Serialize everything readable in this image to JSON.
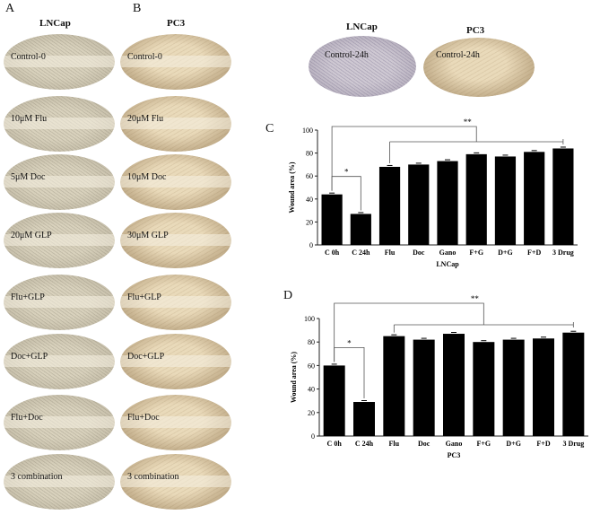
{
  "panels": {
    "a": "A",
    "b": "B",
    "c": "C",
    "d": "D"
  },
  "columns": {
    "lncap": "LNCap",
    "pc3": "PC3"
  },
  "lncap_labels": [
    "Control-0",
    "10μM Flu",
    "5μM Doc",
    "20μM GLP",
    "Flu+GLP",
    "Doc+GLP",
    "Flu+Doc",
    "3 combination"
  ],
  "pc3_labels": [
    "Control-0",
    "20μM Flu",
    "10μM Doc",
    "30μM GLP",
    "Flu+GLP",
    "Doc+GLP",
    "Flu+Doc",
    "3 combination"
  ],
  "top_right": {
    "lncap_title": "LNCap",
    "pc3_title": "PC3",
    "lncap_label": "Control-24h",
    "pc3_label": "Control-24h"
  },
  "chart_data": [
    {
      "type": "bar",
      "panel": "C",
      "categories": [
        "C 0h",
        "C 24h",
        "Flu",
        "Doc",
        "Gano",
        "F+G",
        "D+G",
        "F+D",
        "3 Drug"
      ],
      "values": [
        44,
        27,
        68,
        70,
        73,
        79,
        77,
        81,
        84
      ],
      "xlabel": "LNCap",
      "ylabel": "Wound area (%)",
      "ylim": [
        0,
        100
      ],
      "yticks": [
        "0",
        "20",
        "40",
        "60",
        "80",
        "100"
      ],
      "sig_small": "*",
      "sig_large": "**"
    },
    {
      "type": "bar",
      "panel": "D",
      "categories": [
        "C 0h",
        "C 24h",
        "Flu",
        "Doc",
        "Gano",
        "F+G",
        "D+G",
        "F+D",
        "3 Drug"
      ],
      "values": [
        60,
        29,
        85,
        82,
        87,
        80,
        82,
        83,
        88
      ],
      "xlabel": "PC3",
      "ylabel": "Wound area (%)",
      "ylim": [
        0,
        100
      ],
      "yticks": [
        "0",
        "20",
        "40",
        "60",
        "80",
        "100"
      ],
      "sig_small": "*",
      "sig_large": "**"
    }
  ]
}
